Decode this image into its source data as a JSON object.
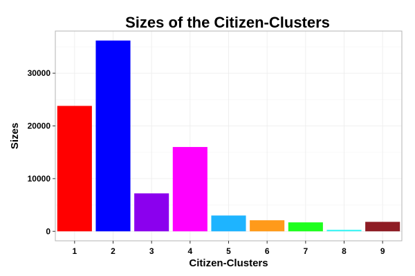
{
  "chart_data": {
    "type": "bar",
    "title": "Sizes of the Citizen-Clusters",
    "xlabel": "Citizen-Clusters",
    "ylabel": "Sizes",
    "categories": [
      "1",
      "2",
      "3",
      "4",
      "5",
      "6",
      "7",
      "8",
      "9"
    ],
    "values": [
      23800,
      36200,
      7200,
      16000,
      3000,
      2100,
      1700,
      300,
      1800
    ],
    "colors": [
      "#FF0000",
      "#0000FF",
      "#8B00EE",
      "#FF00FF",
      "#1EB4FF",
      "#FF9A1A",
      "#1EFF1E",
      "#44F5F5",
      "#8E1C24"
    ],
    "ylim": [
      -1800,
      38000
    ],
    "yticks": [
      0,
      10000,
      20000,
      30000
    ],
    "grid": true,
    "legend": "none"
  }
}
